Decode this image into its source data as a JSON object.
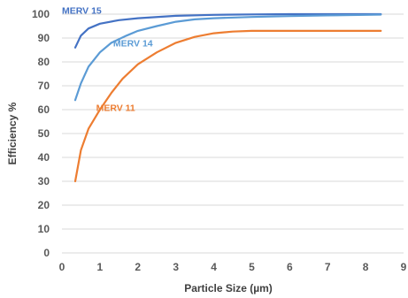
{
  "chart_data": {
    "type": "line",
    "title": "",
    "xlabel": "Particle Size (µm)",
    "ylabel": "Efficiency %",
    "xlim": [
      0,
      9
    ],
    "ylim": [
      0,
      100
    ],
    "xticks": [
      0,
      1,
      2,
      3,
      4,
      5,
      6,
      7,
      8,
      9
    ],
    "yticks": [
      0,
      10,
      20,
      30,
      40,
      50,
      60,
      70,
      80,
      90,
      100
    ],
    "xtick_labels": [
      "0",
      "1",
      "2",
      "3",
      "4",
      "5",
      "6",
      "7",
      "8",
      "9"
    ],
    "ytick_labels": [
      "0",
      "10",
      "20",
      "30",
      "40",
      "50",
      "60",
      "70",
      "80",
      "90",
      "100"
    ],
    "grid": "horizontal",
    "legend": "none",
    "series": [
      {
        "name": "MERV 15",
        "color": "#4472C4",
        "points": [
          [
            0.35,
            86
          ],
          [
            0.5,
            91
          ],
          [
            0.7,
            94
          ],
          [
            1.0,
            96
          ],
          [
            1.5,
            97.5
          ],
          [
            2,
            98.3
          ],
          [
            3,
            99.3
          ],
          [
            4,
            99.7
          ],
          [
            5,
            99.9
          ],
          [
            6,
            100
          ],
          [
            7,
            100
          ],
          [
            8,
            100
          ],
          [
            8.4,
            100
          ]
        ]
      },
      {
        "name": "MERV 14",
        "color": "#5B9BD5",
        "points": [
          [
            0.35,
            64
          ],
          [
            0.5,
            71
          ],
          [
            0.7,
            78
          ],
          [
            1.0,
            84
          ],
          [
            1.3,
            88
          ],
          [
            1.7,
            91
          ],
          [
            2,
            93
          ],
          [
            2.5,
            95
          ],
          [
            3,
            96.8
          ],
          [
            3.5,
            97.8
          ],
          [
            4,
            98.3
          ],
          [
            5,
            98.8
          ],
          [
            6,
            99.2
          ],
          [
            7,
            99.5
          ],
          [
            8,
            99.7
          ],
          [
            8.4,
            99.8
          ]
        ]
      },
      {
        "name": "MERV 11",
        "color": "#ED7D31",
        "points": [
          [
            0.35,
            30
          ],
          [
            0.5,
            43
          ],
          [
            0.7,
            52
          ],
          [
            1.0,
            60
          ],
          [
            1.3,
            67
          ],
          [
            1.6,
            73
          ],
          [
            2,
            79
          ],
          [
            2.5,
            84
          ],
          [
            3,
            88
          ],
          [
            3.5,
            90.5
          ],
          [
            4,
            92
          ],
          [
            4.5,
            92.7
          ],
          [
            5,
            93
          ],
          [
            6,
            93
          ],
          [
            7,
            93
          ],
          [
            8,
            93
          ],
          [
            8.4,
            93
          ]
        ]
      }
    ],
    "series_labels": [
      {
        "text": "MERV 15",
        "color": "#4472C4",
        "x": 0.0,
        "y": 100.2
      },
      {
        "text": "MERV 14",
        "color": "#5B9BD5",
        "x": 1.35,
        "y": 86.5
      },
      {
        "text": "MERV 11",
        "color": "#ED7D31",
        "x": 0.9,
        "y": 59.5
      }
    ]
  }
}
